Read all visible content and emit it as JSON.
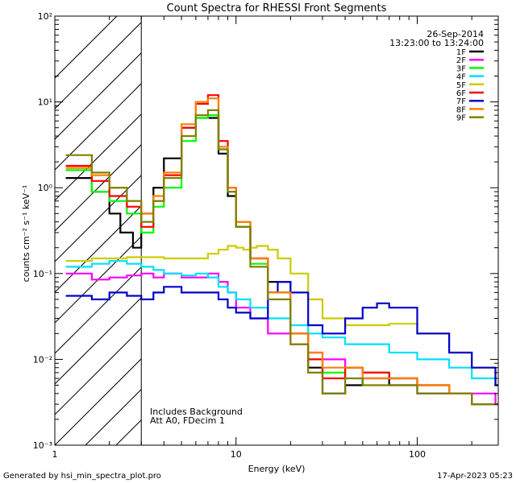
{
  "chart_data": {
    "type": "line",
    "title": "Count Spectra for RHESSI Front Segments",
    "xlabel": "Energy (keV)",
    "ylabel": "counts cm⁻² s⁻¹ keV⁻¹",
    "xscale": "log",
    "yscale": "log",
    "xlim": [
      1,
      280
    ],
    "ylim": [
      0.001,
      100
    ],
    "x_ticks": [
      {
        "value": 1,
        "label": "1"
      },
      {
        "value": 10,
        "label": "10"
      },
      {
        "value": 100,
        "label": "100"
      }
    ],
    "y_ticks": [
      {
        "value": 0.001,
        "label": "10⁻³"
      },
      {
        "value": 0.01,
        "label": "10⁻²"
      },
      {
        "value": 0.1,
        "label": "10⁻¹"
      },
      {
        "value": 1,
        "label": "10⁰"
      },
      {
        "value": 10,
        "label": "10¹"
      },
      {
        "value": 100,
        "label": "10²"
      }
    ],
    "date": "26-Sep-2014",
    "time_range": "13:23:00 to 13:24:00",
    "excluded_region_max_keV": 3,
    "annotations": [
      "Includes Background",
      "Att A0, FDecim 1"
    ],
    "series": [
      {
        "name": "1F",
        "color": "#000000",
        "x": [
          1.15,
          1.6,
          2.0,
          2.3,
          2.7,
          3,
          3.5,
          4,
          5,
          6,
          7,
          8,
          9,
          10,
          12,
          15,
          20,
          25,
          30,
          40,
          50,
          70,
          100,
          150,
          200,
          270
        ],
        "values": [
          1.3,
          0.9,
          0.5,
          0.3,
          0.2,
          0.5,
          1.0,
          2.2,
          5.0,
          6.5,
          6.5,
          2.5,
          0.8,
          0.35,
          0.15,
          0.08,
          0.02,
          0.008,
          0.004,
          0.005,
          0.006,
          0.005,
          0.004,
          0.004,
          0.003,
          0.003
        ]
      },
      {
        "name": "2F",
        "color": "#ff00ff",
        "x": [
          1.15,
          1.6,
          2.0,
          2.5,
          3,
          3.5,
          4,
          5,
          6,
          7,
          8,
          9,
          10,
          12,
          15,
          20,
          25,
          30,
          40,
          50,
          70,
          100,
          150,
          200,
          270
        ],
        "values": [
          0.1,
          0.085,
          0.09,
          0.095,
          0.1,
          0.09,
          0.1,
          0.09,
          0.09,
          0.1,
          0.08,
          0.06,
          0.04,
          0.03,
          0.02,
          0.015,
          0.012,
          0.01,
          0.008,
          0.007,
          0.006,
          0.005,
          0.004,
          0.004,
          0.003
        ]
      },
      {
        "name": "3F",
        "color": "#00ff00",
        "x": [
          1.15,
          1.6,
          2.0,
          2.5,
          3,
          3.5,
          4,
          5,
          6,
          7,
          8,
          9,
          10,
          12,
          15,
          20,
          25,
          30,
          40,
          50,
          70,
          100,
          150,
          200,
          270
        ],
        "values": [
          1.6,
          0.9,
          0.7,
          0.5,
          0.3,
          0.6,
          1.0,
          3.5,
          6.5,
          7.0,
          2.8,
          0.9,
          0.35,
          0.13,
          0.06,
          0.02,
          0.01,
          0.007,
          0.008,
          0.007,
          0.006,
          0.005,
          0.004,
          0.003,
          0.003
        ]
      },
      {
        "name": "4F",
        "color": "#00e0ff",
        "x": [
          1.15,
          1.6,
          2.0,
          2.5,
          3,
          3.5,
          4,
          5,
          6,
          7,
          8,
          9,
          10,
          12,
          15,
          20,
          25,
          30,
          40,
          50,
          70,
          100,
          150,
          200,
          270
        ],
        "values": [
          0.12,
          0.13,
          0.14,
          0.13,
          0.12,
          0.11,
          0.1,
          0.095,
          0.1,
          0.09,
          0.07,
          0.06,
          0.05,
          0.04,
          0.03,
          0.025,
          0.02,
          0.018,
          0.015,
          0.015,
          0.012,
          0.01,
          0.008,
          0.006,
          0.005
        ]
      },
      {
        "name": "5F",
        "color": "#cccc00",
        "x": [
          1.15,
          1.6,
          2,
          2.5,
          3,
          4,
          5,
          6,
          7,
          8,
          9,
          10,
          11,
          12,
          13,
          15,
          17,
          20,
          25,
          30,
          40,
          50,
          70,
          100,
          150,
          200,
          270
        ],
        "values": [
          0.14,
          0.15,
          0.15,
          0.155,
          0.155,
          0.15,
          0.15,
          0.15,
          0.17,
          0.19,
          0.21,
          0.2,
          0.19,
          0.2,
          0.21,
          0.19,
          0.15,
          0.1,
          0.05,
          0.03,
          0.025,
          0.025,
          0.026,
          0.02,
          0.012,
          0.008,
          0.005
        ]
      },
      {
        "name": "6F",
        "color": "#ff0000",
        "x": [
          1.15,
          1.6,
          2.0,
          2.5,
          3,
          3.5,
          4,
          5,
          6,
          7,
          8,
          9,
          10,
          12,
          15,
          20,
          25,
          30,
          40,
          50,
          70,
          100,
          150,
          200,
          270
        ],
        "values": [
          1.8,
          1.2,
          0.8,
          0.6,
          0.35,
          0.7,
          1.4,
          5.0,
          9.5,
          12.0,
          3.5,
          1.0,
          0.4,
          0.15,
          0.06,
          0.02,
          0.01,
          0.006,
          0.008,
          0.007,
          0.006,
          0.005,
          0.004,
          0.003,
          0.003
        ]
      },
      {
        "name": "7F",
        "color": "#0000cc",
        "x": [
          1.15,
          1.6,
          2.0,
          2.5,
          3,
          3.5,
          4,
          5,
          6,
          7,
          8,
          9,
          10,
          12,
          15,
          17,
          20,
          25,
          30,
          40,
          50,
          60,
          70,
          100,
          150,
          200,
          270
        ],
        "values": [
          0.055,
          0.05,
          0.06,
          0.055,
          0.05,
          0.06,
          0.07,
          0.06,
          0.06,
          0.06,
          0.05,
          0.04,
          0.035,
          0.03,
          0.06,
          0.08,
          0.06,
          0.025,
          0.02,
          0.03,
          0.04,
          0.045,
          0.04,
          0.02,
          0.012,
          0.008,
          0.005
        ]
      },
      {
        "name": "8F",
        "color": "#ff8000",
        "x": [
          1.15,
          1.6,
          2.0,
          2.5,
          3,
          3.5,
          4,
          5,
          6,
          7,
          8,
          9,
          10,
          12,
          15,
          20,
          25,
          30,
          40,
          50,
          70,
          100,
          150,
          200,
          270
        ],
        "values": [
          1.7,
          1.4,
          1.0,
          0.7,
          0.5,
          0.8,
          1.5,
          5.5,
          10.0,
          11.0,
          3.0,
          1.0,
          0.4,
          0.15,
          0.06,
          0.02,
          0.012,
          0.008,
          0.008,
          0.006,
          0.006,
          0.005,
          0.004,
          0.003,
          0.003
        ]
      },
      {
        "name": "9F",
        "color": "#808000",
        "x": [
          1.15,
          1.6,
          2.0,
          2.5,
          3,
          3.5,
          4,
          5,
          6,
          7,
          8,
          9,
          10,
          12,
          15,
          20,
          25,
          30,
          40,
          50,
          70,
          100,
          150,
          200,
          270
        ],
        "values": [
          2.4,
          1.5,
          1.0,
          0.7,
          0.4,
          0.7,
          1.3,
          4.0,
          7.0,
          8.0,
          2.8,
          0.9,
          0.35,
          0.12,
          0.05,
          0.015,
          0.007,
          0.004,
          0.006,
          0.005,
          0.005,
          0.004,
          0.004,
          0.003,
          0.003
        ]
      }
    ]
  },
  "footer": {
    "left": "Generated by hsi_min_spectra_plot.pro",
    "right": "17-Apr-2023 05:23"
  }
}
